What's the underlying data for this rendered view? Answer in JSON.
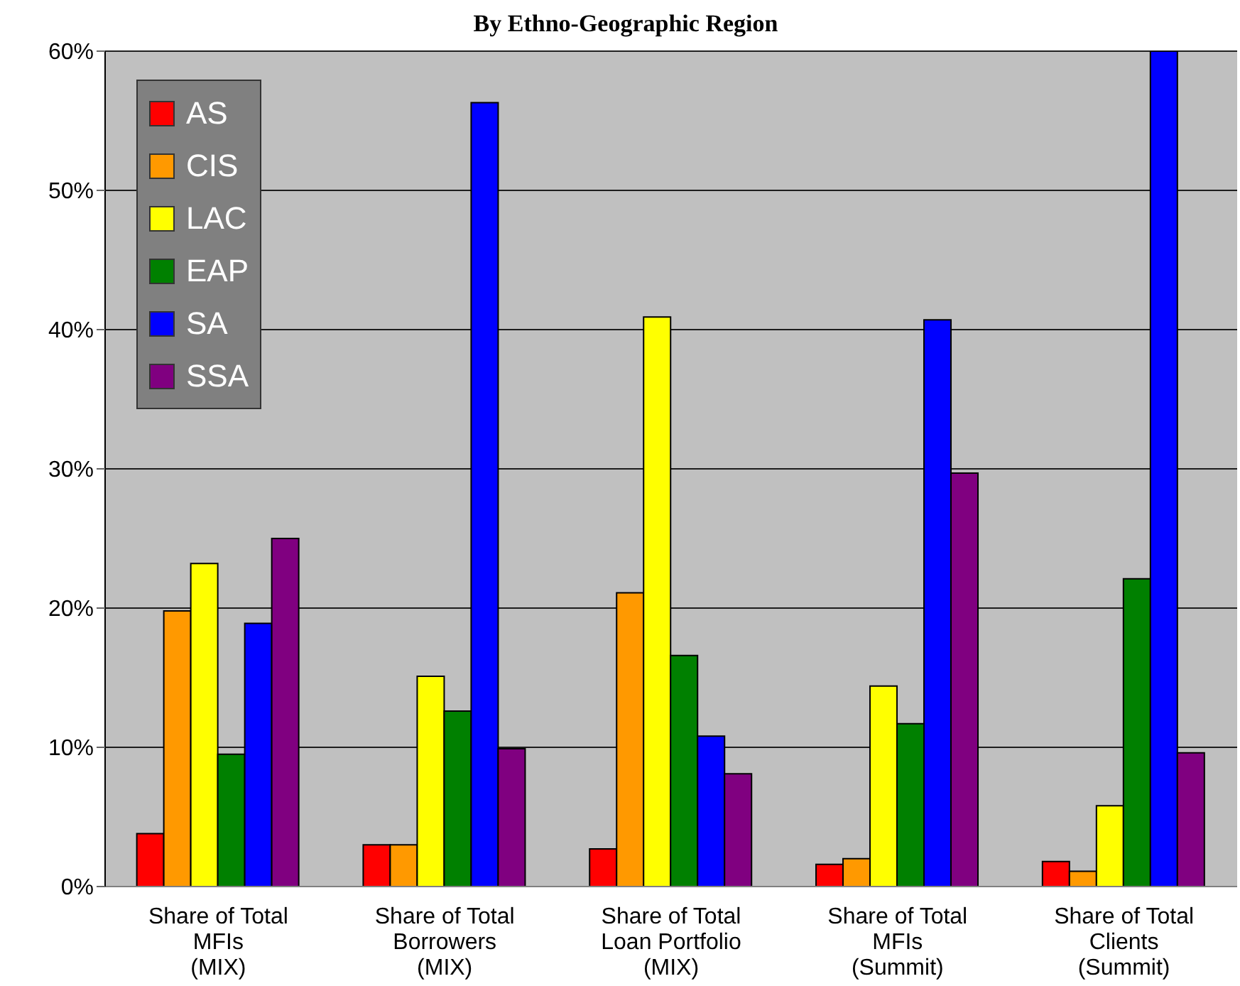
{
  "chart_data": {
    "type": "bar",
    "title": "By Ethno-Geographic Region",
    "categories": [
      "Share of Total\nMFIs\n(MIX)",
      "Share of Total\nBorrowers\n(MIX)",
      "Share of Total\nLoan Portfolio\n(MIX)",
      "Share of Total\nMFIs\n(Summit)",
      "Share of Total\nClients\n(Summit)"
    ],
    "series": [
      {
        "name": "AS",
        "color": "#ff0000",
        "values": [
          3.8,
          3.0,
          2.7,
          1.6,
          1.8
        ]
      },
      {
        "name": "CIS",
        "color": "#ff9900",
        "values": [
          19.8,
          3.0,
          21.1,
          2.0,
          1.1
        ]
      },
      {
        "name": "LAC",
        "color": "#ffff00",
        "values": [
          23.2,
          15.1,
          40.9,
          14.4,
          5.8
        ]
      },
      {
        "name": "EAP",
        "color": "#008000",
        "values": [
          9.5,
          12.6,
          16.6,
          11.7,
          22.1
        ]
      },
      {
        "name": "SA",
        "color": "#0000ff",
        "values": [
          18.9,
          56.3,
          10.8,
          40.7,
          60
        ]
      },
      {
        "name": "SSA",
        "color": "#800080",
        "values": [
          25.0,
          9.9,
          8.1,
          29.7,
          9.6
        ]
      }
    ],
    "ylim": [
      0,
      60
    ],
    "yticks": [
      {
        "value": 0,
        "label": "0%"
      },
      {
        "value": 10,
        "label": "10%"
      },
      {
        "value": 20,
        "label": "20%"
      },
      {
        "value": 30,
        "label": "30%"
      },
      {
        "value": 40,
        "label": "40%"
      },
      {
        "value": 50,
        "label": "50%"
      },
      {
        "value": 60,
        "label": "60%"
      }
    ],
    "grid": "y",
    "legend": "top left"
  }
}
